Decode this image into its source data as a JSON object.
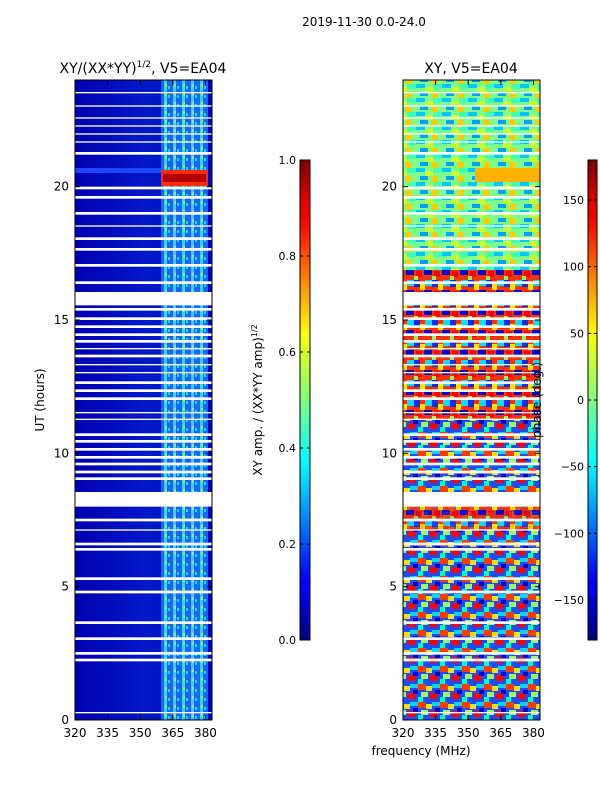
{
  "chart_data": {
    "suptitle": "2019-11-30 0.0-24.0",
    "xlabel": "frequency (MHz)",
    "panels": [
      {
        "type": "heatmap",
        "title_main": "XY/(XX*YY)",
        "title_sup": "1/2",
        "title_tail": ", V5=EA04",
        "ylabel": "UT (hours)",
        "xlim": [
          320,
          383
        ],
        "ylim": [
          0,
          24
        ],
        "xticks": [
          320,
          335,
          350,
          365,
          380
        ],
        "yticks": [
          0,
          5,
          10,
          15,
          20
        ],
        "colorbar": {
          "label": "XY amp. / (XX*YY amp)",
          "label_sup": "1/2",
          "range": [
            0.0,
            1.0
          ],
          "ticks": [
            0.0,
            0.2,
            0.4,
            0.6,
            0.8,
            1.0
          ],
          "tick_labels": [
            "0.0",
            "0.2",
            "0.4",
            "0.6",
            "0.8",
            "1.0"
          ]
        }
      },
      {
        "type": "heatmap",
        "title_main": "XY, V5=EA04",
        "ylabel": "phase (deg.)",
        "xlim": [
          320,
          383
        ],
        "ylim": [
          0,
          24
        ],
        "xticks": [
          320,
          335,
          350,
          365,
          380
        ],
        "yticks": [
          0,
          5,
          10,
          15,
          20
        ],
        "colorbar": {
          "label": "phase (deg.)",
          "range": [
            -180,
            180
          ],
          "ticks": [
            150,
            100,
            50,
            0,
            -50,
            -100,
            -150
          ],
          "tick_labels": [
            "150",
            "100",
            "50",
            "0",
            "−50",
            "−100",
            "−150"
          ]
        }
      }
    ],
    "flagged_time_gaps_hours": [
      [
        0.25,
        0.3
      ],
      [
        2.2,
        2.3
      ],
      [
        2.45,
        2.55
      ],
      [
        3.0,
        3.1
      ],
      [
        3.6,
        3.7
      ],
      [
        4.75,
        4.85
      ],
      [
        5.25,
        5.35
      ],
      [
        6.35,
        6.45
      ],
      [
        6.55,
        6.65
      ],
      [
        7.1,
        7.15
      ],
      [
        7.45,
        7.55
      ],
      [
        8.0,
        8.55
      ],
      [
        9.0,
        9.1
      ],
      [
        9.25,
        9.35
      ],
      [
        9.55,
        9.65
      ],
      [
        9.8,
        9.9
      ],
      [
        10.1,
        10.2
      ],
      [
        10.4,
        10.5
      ],
      [
        10.65,
        10.75
      ],
      [
        11.25,
        11.3
      ],
      [
        11.5,
        11.55
      ],
      [
        12.0,
        12.1
      ],
      [
        12.3,
        12.4
      ],
      [
        12.6,
        12.7
      ],
      [
        13.0,
        13.05
      ],
      [
        13.3,
        13.35
      ],
      [
        13.6,
        13.7
      ],
      [
        13.9,
        13.95
      ],
      [
        14.15,
        14.25
      ],
      [
        14.4,
        14.5
      ],
      [
        14.7,
        14.8
      ],
      [
        15.0,
        15.1
      ],
      [
        15.35,
        15.45
      ],
      [
        15.55,
        16.05
      ],
      [
        16.35,
        16.45
      ],
      [
        17.0,
        17.1
      ],
      [
        17.6,
        17.7
      ],
      [
        18.0,
        18.1
      ],
      [
        18.5,
        18.55
      ],
      [
        18.95,
        19.05
      ],
      [
        19.55,
        19.65
      ],
      [
        19.9,
        20.0
      ],
      [
        21.2,
        21.3
      ],
      [
        21.65,
        21.7
      ],
      [
        21.95,
        22.0
      ],
      [
        22.25,
        22.3
      ],
      [
        22.55,
        22.6
      ],
      [
        23.0,
        23.05
      ],
      [
        23.5,
        23.55
      ]
    ]
  }
}
